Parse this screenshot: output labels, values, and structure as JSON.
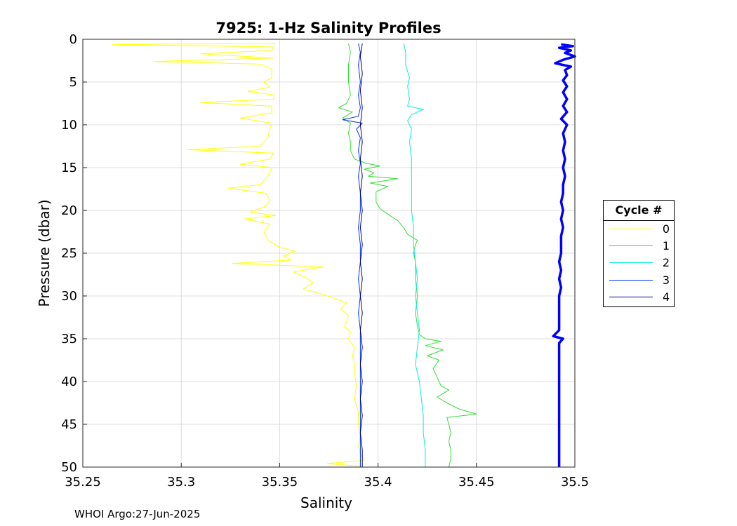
{
  "chart_data": {
    "type": "line",
    "title": "7925: 1-Hz Salinity Profiles",
    "xlabel": "Salinity",
    "ylabel": "Pressure (dbar)",
    "xlim": [
      35.25,
      35.5
    ],
    "ylim": [
      0,
      50
    ],
    "y_reversed": true,
    "grid": true,
    "xticks": [
      "35.25",
      "35.3",
      "35.35",
      "35.4",
      "35.45",
      "35.5"
    ],
    "yticks": [
      "0",
      "5",
      "10",
      "15",
      "20",
      "25",
      "30",
      "35",
      "40",
      "45",
      "50"
    ],
    "legend": {
      "title": "Cycle #",
      "placement": "outside-right"
    },
    "series": [
      {
        "name": "0",
        "color": "#ffff00",
        "points": [
          [
            35.348,
            0.5
          ],
          [
            35.265,
            0.6
          ],
          [
            35.347,
            0.9
          ],
          [
            35.346,
            1.3
          ],
          [
            35.31,
            1.7
          ],
          [
            35.347,
            2.2
          ],
          [
            35.286,
            2.6
          ],
          [
            35.34,
            2.9
          ],
          [
            35.346,
            3.5
          ],
          [
            35.346,
            4.5
          ],
          [
            35.342,
            5.0
          ],
          [
            35.345,
            5.6
          ],
          [
            35.334,
            6.1
          ],
          [
            35.347,
            6.5
          ],
          [
            35.347,
            7.0
          ],
          [
            35.31,
            7.4
          ],
          [
            35.346,
            7.8
          ],
          [
            35.346,
            8.6
          ],
          [
            35.33,
            9.2
          ],
          [
            35.346,
            9.8
          ],
          [
            35.345,
            10.5
          ],
          [
            35.344,
            11.5
          ],
          [
            35.34,
            12.5
          ],
          [
            35.303,
            12.9
          ],
          [
            35.347,
            13.3
          ],
          [
            35.345,
            14.0
          ],
          [
            35.33,
            14.6
          ],
          [
            35.346,
            15.0
          ],
          [
            35.344,
            16.0
          ],
          [
            35.34,
            17.0
          ],
          [
            35.324,
            17.4
          ],
          [
            35.343,
            18.0
          ],
          [
            35.345,
            18.8
          ],
          [
            35.343,
            19.5
          ],
          [
            35.335,
            20.2
          ],
          [
            35.348,
            20.6
          ],
          [
            35.332,
            21.0
          ],
          [
            35.345,
            21.6
          ],
          [
            35.342,
            22.5
          ],
          [
            35.344,
            23.5
          ],
          [
            35.349,
            24.2
          ],
          [
            35.358,
            24.8
          ],
          [
            35.352,
            25.3
          ],
          [
            35.356,
            25.8
          ],
          [
            35.326,
            26.2
          ],
          [
            35.372,
            26.6
          ],
          [
            35.357,
            27.2
          ],
          [
            35.363,
            27.8
          ],
          [
            35.367,
            28.5
          ],
          [
            35.362,
            29.2
          ],
          [
            35.372,
            29.8
          ],
          [
            35.378,
            30.3
          ],
          [
            35.384,
            30.8
          ],
          [
            35.381,
            31.5
          ],
          [
            35.385,
            32.3
          ],
          [
            35.384,
            33.0
          ],
          [
            35.383,
            33.6
          ],
          [
            35.386,
            34.2
          ],
          [
            35.385,
            35.0
          ],
          [
            35.388,
            36.0
          ],
          [
            35.387,
            37.0
          ],
          [
            35.388,
            38.0
          ],
          [
            35.388,
            39.0
          ],
          [
            35.389,
            40.5
          ],
          [
            35.388,
            42.0
          ],
          [
            35.39,
            43.5
          ],
          [
            35.39,
            45.0
          ],
          [
            35.391,
            46.5
          ],
          [
            35.39,
            47.5
          ],
          [
            35.391,
            48.5
          ],
          [
            35.393,
            49.2
          ],
          [
            35.374,
            49.6
          ],
          [
            35.392,
            49.9
          ]
        ]
      },
      {
        "name": "1",
        "color": "#33dd33",
        "points": [
          [
            35.385,
            0.5
          ],
          [
            35.386,
            1.5
          ],
          [
            35.385,
            3.0
          ],
          [
            35.385,
            5.0
          ],
          [
            35.386,
            6.5
          ],
          [
            35.384,
            7.5
          ],
          [
            35.38,
            8.0
          ],
          [
            35.387,
            8.5
          ],
          [
            35.382,
            9.2
          ],
          [
            35.386,
            9.8
          ],
          [
            35.385,
            11.0
          ],
          [
            35.386,
            12.0
          ],
          [
            35.386,
            13.0
          ],
          [
            35.388,
            14.0
          ],
          [
            35.394,
            14.5
          ],
          [
            35.401,
            14.8
          ],
          [
            35.393,
            15.2
          ],
          [
            35.398,
            15.6
          ],
          [
            35.395,
            16.0
          ],
          [
            35.41,
            16.3
          ],
          [
            35.396,
            16.8
          ],
          [
            35.405,
            17.2
          ],
          [
            35.399,
            17.8
          ],
          [
            35.399,
            19.0
          ],
          [
            35.401,
            19.8
          ],
          [
            35.406,
            20.6
          ],
          [
            35.41,
            21.2
          ],
          [
            35.413,
            22.0
          ],
          [
            35.415,
            22.8
          ],
          [
            35.42,
            23.5
          ],
          [
            35.419,
            24.0
          ],
          [
            35.418,
            25.0
          ],
          [
            35.419,
            26.0
          ],
          [
            35.419,
            28.0
          ],
          [
            35.42,
            30.0
          ],
          [
            35.419,
            32.0
          ],
          [
            35.42,
            33.5
          ],
          [
            35.421,
            34.5
          ],
          [
            35.424,
            35.0
          ],
          [
            35.432,
            35.3
          ],
          [
            35.424,
            35.8
          ],
          [
            35.433,
            36.3
          ],
          [
            35.425,
            37.0
          ],
          [
            35.431,
            37.5
          ],
          [
            35.428,
            38.5
          ],
          [
            35.43,
            39.5
          ],
          [
            35.432,
            40.5
          ],
          [
            35.436,
            41.0
          ],
          [
            35.43,
            41.8
          ],
          [
            35.435,
            42.5
          ],
          [
            35.441,
            43.2
          ],
          [
            35.45,
            43.8
          ],
          [
            35.435,
            44.2
          ],
          [
            35.436,
            45.0
          ],
          [
            35.437,
            46.0
          ],
          [
            35.436,
            47.0
          ],
          [
            35.437,
            48.0
          ],
          [
            35.437,
            49.0
          ],
          [
            35.436,
            50.0
          ]
        ]
      },
      {
        "name": "2",
        "color": "#00eedd",
        "points": [
          [
            35.413,
            0.5
          ],
          [
            35.414,
            1.5
          ],
          [
            35.414,
            3.0
          ],
          [
            35.416,
            4.5
          ],
          [
            35.415,
            5.5
          ],
          [
            35.416,
            7.0
          ],
          [
            35.415,
            7.8
          ],
          [
            35.423,
            8.2
          ],
          [
            35.417,
            8.8
          ],
          [
            35.415,
            9.5
          ],
          [
            35.417,
            10.5
          ],
          [
            35.416,
            12.0
          ],
          [
            35.417,
            14.0
          ],
          [
            35.417,
            16.0
          ],
          [
            35.417,
            18.0
          ],
          [
            35.417,
            20.0
          ],
          [
            35.418,
            22.0
          ],
          [
            35.418,
            24.0
          ],
          [
            35.419,
            26.0
          ],
          [
            35.42,
            28.0
          ],
          [
            35.419,
            30.0
          ],
          [
            35.42,
            32.0
          ],
          [
            35.421,
            34.0
          ],
          [
            35.42,
            36.0
          ],
          [
            35.419,
            38.0
          ],
          [
            35.421,
            40.0
          ],
          [
            35.422,
            42.0
          ],
          [
            35.423,
            44.0
          ],
          [
            35.423,
            46.0
          ],
          [
            35.424,
            48.0
          ],
          [
            35.424,
            50.0
          ]
        ]
      },
      {
        "name": "3",
        "color": "#0033ee",
        "points": [
          [
            35.39,
            0.5
          ],
          [
            35.391,
            1.5
          ],
          [
            35.39,
            3.0
          ],
          [
            35.391,
            5.0
          ],
          [
            35.39,
            6.5
          ],
          [
            35.391,
            8.0
          ],
          [
            35.39,
            9.0
          ],
          [
            35.382,
            9.4
          ],
          [
            35.392,
            9.8
          ],
          [
            35.389,
            10.5
          ],
          [
            35.391,
            11.5
          ],
          [
            35.39,
            13.0
          ],
          [
            35.391,
            14.5
          ],
          [
            35.39,
            16.0
          ],
          [
            35.391,
            18.0
          ],
          [
            35.391,
            20.0
          ],
          [
            35.39,
            22.0
          ],
          [
            35.391,
            24.0
          ],
          [
            35.391,
            26.0
          ],
          [
            35.39,
            28.0
          ],
          [
            35.391,
            30.0
          ],
          [
            35.39,
            32.0
          ],
          [
            35.391,
            34.0
          ],
          [
            35.391,
            36.0
          ],
          [
            35.391,
            38.0
          ],
          [
            35.391,
            40.0
          ],
          [
            35.391,
            42.0
          ],
          [
            35.391,
            44.0
          ],
          [
            35.391,
            46.0
          ],
          [
            35.391,
            48.0
          ],
          [
            35.391,
            50.0
          ]
        ]
      },
      {
        "name": "4",
        "color": "#000088",
        "points": [
          [
            35.392,
            0.5
          ],
          [
            35.391,
            2.0
          ],
          [
            35.392,
            4.0
          ],
          [
            35.391,
            6.0
          ],
          [
            35.392,
            8.0
          ],
          [
            35.391,
            10.0
          ],
          [
            35.392,
            12.0
          ],
          [
            35.391,
            14.0
          ],
          [
            35.392,
            16.0
          ],
          [
            35.391,
            18.0
          ],
          [
            35.392,
            20.0
          ],
          [
            35.391,
            22.0
          ],
          [
            35.392,
            24.0
          ],
          [
            35.391,
            26.0
          ],
          [
            35.392,
            28.0
          ],
          [
            35.391,
            30.0
          ],
          [
            35.392,
            32.0
          ],
          [
            35.391,
            34.0
          ],
          [
            35.392,
            36.0
          ],
          [
            35.391,
            38.0
          ],
          [
            35.392,
            40.0
          ],
          [
            35.391,
            42.0
          ],
          [
            35.392,
            44.0
          ],
          [
            35.391,
            46.0
          ],
          [
            35.392,
            48.0
          ],
          [
            35.392,
            50.0
          ]
        ]
      },
      {
        "name": "",
        "color": "#0000ff",
        "thick": true,
        "points": [
          [
            35.493,
            0.6
          ],
          [
            35.499,
            0.8
          ],
          [
            35.492,
            1.0
          ],
          [
            35.498,
            1.3
          ],
          [
            35.495,
            1.6
          ],
          [
            35.5,
            2.0
          ],
          [
            35.494,
            2.4
          ],
          [
            35.49,
            2.8
          ],
          [
            35.498,
            3.2
          ],
          [
            35.495,
            3.6
          ],
          [
            35.496,
            4.2
          ],
          [
            35.494,
            4.8
          ],
          [
            35.496,
            5.5
          ],
          [
            35.494,
            6.2
          ],
          [
            35.496,
            7.0
          ],
          [
            35.494,
            7.8
          ],
          [
            35.496,
            8.5
          ],
          [
            35.493,
            9.3
          ],
          [
            35.496,
            10.0
          ],
          [
            35.494,
            11.0
          ],
          [
            35.495,
            12.0
          ],
          [
            35.494,
            13.0
          ],
          [
            35.495,
            14.0
          ],
          [
            35.494,
            15.0
          ],
          [
            35.495,
            16.0
          ],
          [
            35.494,
            17.0
          ],
          [
            35.494,
            18.0
          ],
          [
            35.493,
            19.0
          ],
          [
            35.494,
            20.0
          ],
          [
            35.493,
            21.0
          ],
          [
            35.494,
            22.0
          ],
          [
            35.493,
            23.0
          ],
          [
            35.493,
            24.0
          ],
          [
            35.493,
            25.0
          ],
          [
            35.492,
            26.0
          ],
          [
            35.493,
            27.0
          ],
          [
            35.492,
            28.0
          ],
          [
            35.493,
            29.0
          ],
          [
            35.492,
            30.0
          ],
          [
            35.492,
            31.0
          ],
          [
            35.492,
            32.0
          ],
          [
            35.492,
            33.0
          ],
          [
            35.492,
            34.0
          ],
          [
            35.489,
            34.7
          ],
          [
            35.494,
            35.0
          ],
          [
            35.492,
            35.5
          ],
          [
            35.492,
            36.5
          ],
          [
            35.492,
            38.0
          ],
          [
            35.492,
            39.5
          ],
          [
            35.492,
            41.0
          ],
          [
            35.492,
            42.5
          ],
          [
            35.492,
            44.0
          ],
          [
            35.492,
            45.5
          ],
          [
            35.492,
            47.0
          ],
          [
            35.492,
            48.5
          ],
          [
            35.492,
            50.0
          ]
        ]
      }
    ]
  },
  "footer": "WHOI Argo:27-Jun-2025"
}
